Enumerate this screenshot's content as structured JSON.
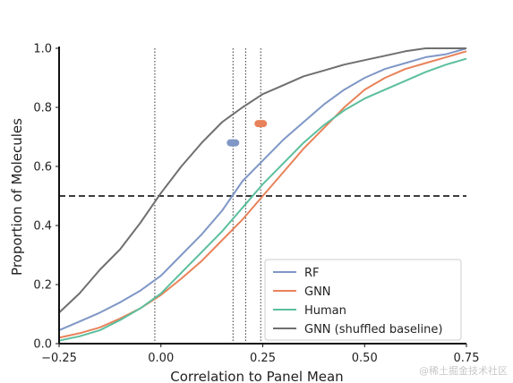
{
  "chart_data": {
    "type": "line",
    "xlabel": "Correlation to Panel Mean",
    "ylabel": "Proportion of Molecules",
    "xlim": [
      -0.25,
      0.75
    ],
    "ylim": [
      0.0,
      1.0
    ],
    "xticks": [
      -0.25,
      0.0,
      0.25,
      0.5,
      0.75
    ],
    "xtick_labels": [
      "−0.25",
      "0.00",
      "0.25",
      "0.50",
      "0.75"
    ],
    "yticks": [
      0.0,
      0.2,
      0.4,
      0.6,
      0.8,
      1.0
    ],
    "ytick_labels": [
      "0.0",
      "0.2",
      "0.4",
      "0.6",
      "0.8",
      "1.0"
    ],
    "grid": false,
    "legend_position": "lower-right",
    "reference_lines": {
      "horizontal": [
        0.5
      ],
      "vertical": [
        -0.015,
        0.177,
        0.208,
        0.245
      ]
    },
    "series": [
      {
        "name": "RF",
        "color": "#7f97c6",
        "points": [
          [
            -0.25,
            0.045
          ],
          [
            -0.2,
            0.075
          ],
          [
            -0.15,
            0.105
          ],
          [
            -0.1,
            0.14
          ],
          [
            -0.05,
            0.18
          ],
          [
            0.0,
            0.23
          ],
          [
            0.05,
            0.3
          ],
          [
            0.1,
            0.37
          ],
          [
            0.15,
            0.45
          ],
          [
            0.2,
            0.55
          ],
          [
            0.25,
            0.62
          ],
          [
            0.3,
            0.69
          ],
          [
            0.35,
            0.75
          ],
          [
            0.4,
            0.81
          ],
          [
            0.45,
            0.86
          ],
          [
            0.5,
            0.9
          ],
          [
            0.55,
            0.93
          ],
          [
            0.6,
            0.95
          ],
          [
            0.65,
            0.97
          ],
          [
            0.7,
            0.98
          ],
          [
            0.75,
            1.0
          ]
        ]
      },
      {
        "name": "GNN",
        "color": "#e8825a",
        "points": [
          [
            -0.25,
            0.02
          ],
          [
            -0.2,
            0.035
          ],
          [
            -0.15,
            0.055
          ],
          [
            -0.1,
            0.085
          ],
          [
            -0.05,
            0.12
          ],
          [
            0.0,
            0.165
          ],
          [
            0.05,
            0.22
          ],
          [
            0.1,
            0.28
          ],
          [
            0.15,
            0.35
          ],
          [
            0.2,
            0.42
          ],
          [
            0.25,
            0.5
          ],
          [
            0.3,
            0.58
          ],
          [
            0.35,
            0.66
          ],
          [
            0.4,
            0.73
          ],
          [
            0.45,
            0.8
          ],
          [
            0.5,
            0.86
          ],
          [
            0.55,
            0.9
          ],
          [
            0.6,
            0.93
          ],
          [
            0.65,
            0.95
          ],
          [
            0.7,
            0.97
          ],
          [
            0.75,
            0.99
          ]
        ]
      },
      {
        "name": "Human",
        "color": "#5bbf9e",
        "points": [
          [
            -0.25,
            0.01
          ],
          [
            -0.2,
            0.025
          ],
          [
            -0.15,
            0.045
          ],
          [
            -0.1,
            0.08
          ],
          [
            -0.05,
            0.12
          ],
          [
            0.0,
            0.17
          ],
          [
            0.05,
            0.24
          ],
          [
            0.1,
            0.31
          ],
          [
            0.15,
            0.38
          ],
          [
            0.2,
            0.46
          ],
          [
            0.25,
            0.54
          ],
          [
            0.3,
            0.61
          ],
          [
            0.35,
            0.68
          ],
          [
            0.4,
            0.74
          ],
          [
            0.45,
            0.79
          ],
          [
            0.5,
            0.83
          ],
          [
            0.55,
            0.86
          ],
          [
            0.6,
            0.89
          ],
          [
            0.65,
            0.92
          ],
          [
            0.7,
            0.945
          ],
          [
            0.75,
            0.965
          ]
        ]
      },
      {
        "name": "GNN (shuffled baseline)",
        "color": "#6f6f6f",
        "points": [
          [
            -0.25,
            0.105
          ],
          [
            -0.2,
            0.17
          ],
          [
            -0.15,
            0.25
          ],
          [
            -0.1,
            0.32
          ],
          [
            -0.05,
            0.41
          ],
          [
            0.0,
            0.51
          ],
          [
            0.05,
            0.6
          ],
          [
            0.1,
            0.68
          ],
          [
            0.15,
            0.75
          ],
          [
            0.2,
            0.8
          ],
          [
            0.25,
            0.845
          ],
          [
            0.3,
            0.875
          ],
          [
            0.35,
            0.905
          ],
          [
            0.4,
            0.925
          ],
          [
            0.45,
            0.945
          ],
          [
            0.5,
            0.96
          ],
          [
            0.55,
            0.975
          ],
          [
            0.6,
            0.99
          ],
          [
            0.65,
            1.0
          ],
          [
            0.7,
            1.0
          ],
          [
            0.75,
            1.0
          ]
        ]
      }
    ],
    "markers": [
      {
        "series": "GNN",
        "x": 0.245,
        "y": 0.745,
        "color": "#e8825a"
      },
      {
        "series": "RF",
        "x": 0.177,
        "y": 0.68,
        "color": "#7f97c6"
      }
    ]
  },
  "watermark": "@稀土掘金技术社区"
}
